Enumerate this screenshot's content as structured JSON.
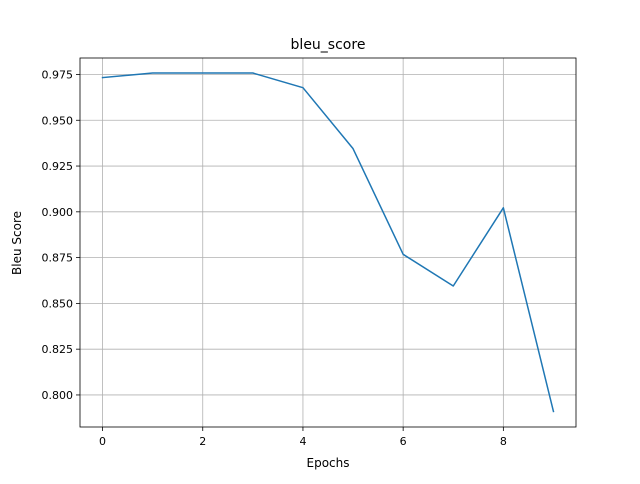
{
  "chart_data": {
    "type": "line",
    "title": "bleu_score",
    "xlabel": "Epochs",
    "ylabel": "Bleu Score",
    "xlim": [
      -0.45,
      9.45
    ],
    "ylim": [
      0.7825,
      0.984
    ],
    "xticks": [
      0,
      2,
      4,
      6,
      8
    ],
    "xtick_labels": [
      "0",
      "2",
      "4",
      "6",
      "8"
    ],
    "yticks": [
      0.8,
      0.825,
      0.85,
      0.875,
      0.9,
      0.925,
      0.95,
      0.975
    ],
    "ytick_labels": [
      "0.800",
      "0.825",
      "0.850",
      "0.875",
      "0.900",
      "0.925",
      "0.950",
      "0.975"
    ],
    "grid": true,
    "legend": false,
    "series": [
      {
        "color": "#1f77b4",
        "x": [
          0,
          1,
          2,
          3,
          4,
          5,
          6,
          7,
          8,
          9
        ],
        "y": [
          0.9733,
          0.9758,
          0.9758,
          0.9758,
          0.9678,
          0.9345,
          0.8768,
          0.8595,
          0.9022,
          0.791
        ]
      }
    ]
  }
}
